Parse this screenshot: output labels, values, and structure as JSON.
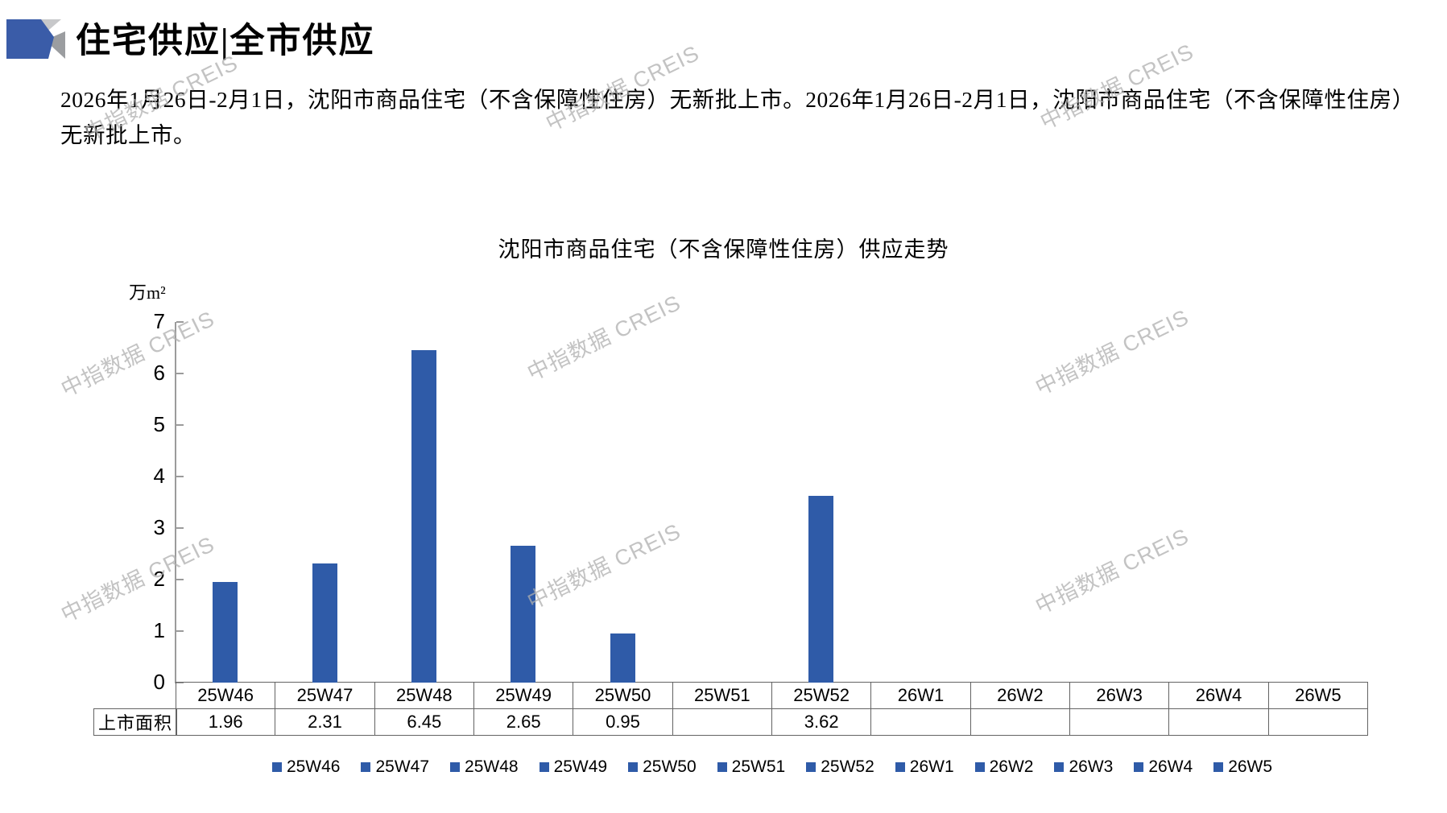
{
  "page": {
    "title": "住宅供应|全市供应",
    "paragraph": "2026年1月26日-2月1日，沈阳市商品住宅（不含保障性住房）无新批上市。2026年1月26日-2月1日，沈阳市商品住宅（不含保障性住房）无新批上市。",
    "watermark_text": "中指数据 CREIS"
  },
  "chart_data": {
    "type": "bar",
    "title": "沈阳市商品住宅（不含保障性住房）供应走势",
    "unit_label": "万m²",
    "categories": [
      "25W46",
      "25W47",
      "25W48",
      "25W49",
      "25W50",
      "25W51",
      "25W52",
      "26W1",
      "26W2",
      "26W3",
      "26W4",
      "26W5"
    ],
    "series": [
      {
        "name": "上市面积",
        "values": [
          1.96,
          2.31,
          6.45,
          2.65,
          0.95,
          null,
          3.62,
          null,
          null,
          null,
          null,
          null
        ]
      }
    ],
    "table": {
      "row_label": "上市面积",
      "display_values": [
        "1.96",
        "2.31",
        "6.45",
        "2.65",
        "0.95",
        "",
        "3.62",
        "",
        "",
        "",
        "",
        ""
      ]
    },
    "ylim": [
      0,
      7
    ],
    "yticks": [
      0,
      1,
      2,
      3,
      4,
      5,
      6,
      7
    ],
    "legend": [
      "25W46",
      "25W47",
      "25W48",
      "25W49",
      "25W50",
      "25W51",
      "25W52",
      "26W1",
      "26W2",
      "26W3",
      "26W4",
      "26W5"
    ],
    "legend_position": "bottom",
    "grid": false,
    "colors": {
      "bar": "#2F5BA8",
      "axis": "#9B9B9B",
      "table_border": "#636363",
      "watermark": "#AFAFAF"
    }
  }
}
